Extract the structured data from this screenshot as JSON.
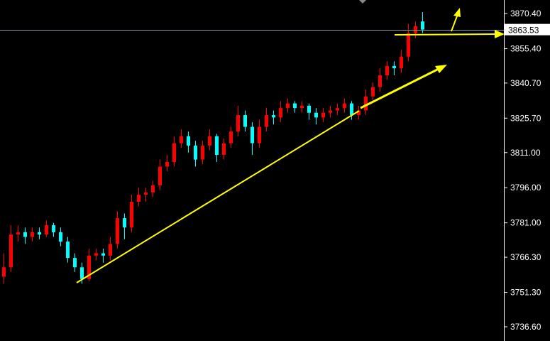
{
  "chart_data": {
    "type": "candlestick",
    "title": "",
    "xlabel": "",
    "ylabel": "",
    "ylim": [
      3733,
      3877
    ],
    "grid": false,
    "y_ticks": [
      "3870.40",
      "3855.40",
      "3840.70",
      "3825.70",
      "3811.00",
      "3796.00",
      "3781.00",
      "3766.30",
      "3751.30",
      "3736.60"
    ],
    "current_price": "3863.53",
    "colors": {
      "background": "#000000",
      "up": "#ff0000",
      "down": "#00ffff",
      "axis": "#ffffff",
      "price_line": "#8a9aa8",
      "annotation": "#ffff00"
    },
    "candles": [
      [
        3758,
        3768,
        3755,
        3762
      ],
      [
        3762,
        3780,
        3760,
        3776
      ],
      [
        3776,
        3780,
        3773,
        3777
      ],
      [
        3777,
        3779,
        3772,
        3775
      ],
      [
        3775,
        3779,
        3773,
        3777
      ],
      [
        3777,
        3779,
        3774,
        3776
      ],
      [
        3776,
        3782,
        3775,
        3780
      ],
      [
        3780,
        3781,
        3775,
        3777
      ],
      [
        3777,
        3779,
        3771,
        3773
      ],
      [
        3773,
        3775,
        3764,
        3766
      ],
      [
        3766,
        3768,
        3760,
        3762
      ],
      [
        3762,
        3764,
        3755,
        3757
      ],
      [
        3757,
        3770,
        3756,
        3767
      ],
      [
        3767,
        3770,
        3765,
        3768
      ],
      [
        3768,
        3770,
        3764,
        3767
      ],
      [
        3767,
        3775,
        3765,
        3772
      ],
      [
        3772,
        3786,
        3770,
        3783
      ],
      [
        3783,
        3785,
        3774,
        3779
      ],
      [
        3779,
        3793,
        3777,
        3790
      ],
      [
        3790,
        3796,
        3788,
        3793
      ],
      [
        3793,
        3796,
        3790,
        3794
      ],
      [
        3794,
        3799,
        3792,
        3797
      ],
      [
        3797,
        3808,
        3795,
        3805
      ],
      [
        3805,
        3810,
        3803,
        3807
      ],
      [
        3807,
        3818,
        3805,
        3815
      ],
      [
        3815,
        3821,
        3813,
        3818
      ],
      [
        3818,
        3820,
        3811,
        3814
      ],
      [
        3814,
        3816,
        3805,
        3808
      ],
      [
        3808,
        3816,
        3806,
        3814
      ],
      [
        3814,
        3821,
        3812,
        3818
      ],
      [
        3818,
        3819,
        3807,
        3810
      ],
      [
        3810,
        3817,
        3808,
        3815
      ],
      [
        3815,
        3822,
        3813,
        3820
      ],
      [
        3820,
        3831,
        3818,
        3827
      ],
      [
        3827,
        3829,
        3820,
        3822
      ],
      [
        3822,
        3824,
        3810,
        3815
      ],
      [
        3815,
        3825,
        3813,
        3822
      ],
      [
        3822,
        3830,
        3820,
        3827
      ],
      [
        3827,
        3829,
        3823,
        3826
      ],
      [
        3826,
        3833,
        3824,
        3830
      ],
      [
        3830,
        3834,
        3828,
        3832
      ],
      [
        3832,
        3833,
        3828,
        3830
      ],
      [
        3830,
        3833,
        3828,
        3831
      ],
      [
        3831,
        3832,
        3825,
        3828
      ],
      [
        3828,
        3830,
        3823,
        3826
      ],
      [
        3826,
        3830,
        3824,
        3828
      ],
      [
        3828,
        3831,
        3826,
        3829
      ],
      [
        3829,
        3832,
        3827,
        3830
      ],
      [
        3830,
        3834,
        3828,
        3832
      ],
      [
        3832,
        3833,
        3825,
        3827
      ],
      [
        3827,
        3831,
        3825,
        3829
      ],
      [
        3829,
        3838,
        3827,
        3835
      ],
      [
        3835,
        3841,
        3833,
        3839
      ],
      [
        3839,
        3847,
        3837,
        3844
      ],
      [
        3844,
        3850,
        3842,
        3848
      ],
      [
        3848,
        3850,
        3844,
        3847
      ],
      [
        3847,
        3855,
        3845,
        3852
      ],
      [
        3852,
        3866,
        3850,
        3862
      ],
      [
        3862,
        3867,
        3860,
        3865
      ],
      [
        3867,
        3871,
        3862,
        3863.53
      ]
    ]
  }
}
